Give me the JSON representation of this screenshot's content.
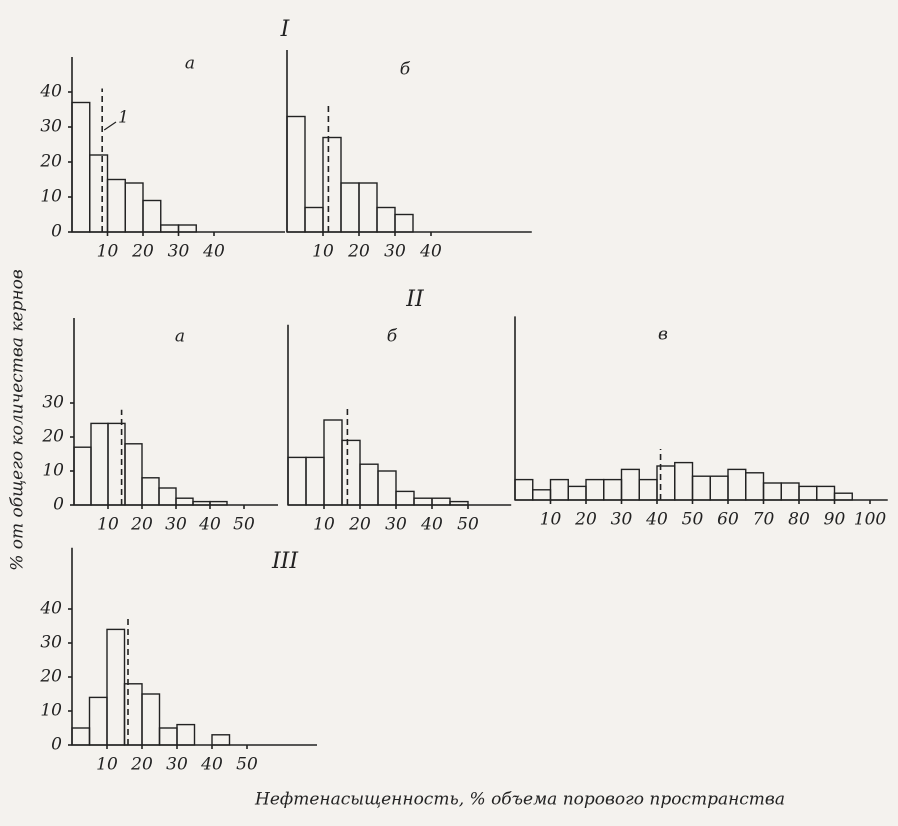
{
  "figure": {
    "ylabel": "% от общего количества кернов",
    "xlabel": "Нефтенасыщенность, % объема порового пространства"
  },
  "chart_data": [
    {
      "type": "histogram",
      "group": "I",
      "title": "а",
      "annotation": "1",
      "bins": [
        0,
        5,
        10,
        15,
        20,
        25,
        30,
        35
      ],
      "values": [
        37,
        22,
        15,
        14,
        9,
        2,
        2
      ],
      "mean": 8.5,
      "xlim": [
        0,
        60
      ],
      "ylim": [
        0,
        50
      ],
      "xticks": [
        10,
        20,
        30,
        40
      ],
      "yticks": [
        0,
        10,
        20,
        30,
        40
      ]
    },
    {
      "type": "histogram",
      "title": "б",
      "bins": [
        0,
        5,
        10,
        15,
        20,
        25,
        30,
        35
      ],
      "values": [
        33,
        7,
        27,
        14,
        14,
        7,
        5
      ],
      "mean": 11.5,
      "xlim": [
        0,
        68
      ],
      "ylim": [
        0,
        52
      ],
      "xticks": [
        10,
        20,
        30,
        40
      ]
    },
    {
      "type": "histogram",
      "group": "II",
      "title": "а",
      "bins": [
        0,
        5,
        10,
        15,
        20,
        25,
        30,
        35,
        40,
        45
      ],
      "values": [
        17,
        24,
        24,
        18,
        8,
        5,
        2,
        1,
        1
      ],
      "mean": 14,
      "xlim": [
        0,
        60
      ],
      "ylim": [
        0,
        55
      ],
      "xticks": [
        10,
        20,
        30,
        40,
        50
      ],
      "yticks": [
        0,
        10,
        20,
        30
      ]
    },
    {
      "type": "histogram",
      "title": "б",
      "bins": [
        0,
        5,
        10,
        15,
        20,
        25,
        30,
        35,
        40,
        45,
        50
      ],
      "values": [
        14,
        14,
        25,
        19,
        12,
        10,
        4,
        2,
        2,
        1
      ],
      "mean": 16.5,
      "xlim": [
        0,
        62
      ],
      "ylim": [
        0,
        53
      ],
      "xticks": [
        10,
        20,
        30,
        40,
        50
      ]
    },
    {
      "type": "histogram",
      "title": "в",
      "bins": [
        0,
        5,
        10,
        15,
        20,
        25,
        30,
        35,
        40,
        45,
        50,
        55,
        60,
        65,
        70,
        75,
        80,
        85,
        90,
        95
      ],
      "values": [
        6,
        3,
        6,
        4,
        6,
        6,
        9,
        6,
        10,
        11,
        7,
        7,
        9,
        8,
        5,
        5,
        4,
        4,
        2
      ],
      "mean": 41,
      "xlim": [
        0,
        105
      ],
      "ylim": [
        0,
        54
      ],
      "xticks": [
        10,
        20,
        30,
        40,
        50,
        60,
        70,
        80,
        90,
        100
      ]
    },
    {
      "type": "histogram",
      "group": "III",
      "bins": [
        0,
        5,
        10,
        15,
        20,
        25,
        30,
        35,
        40,
        45
      ],
      "values": [
        5,
        14,
        34,
        18,
        15,
        5,
        6,
        0,
        3
      ],
      "mean": 16,
      "xlim": [
        0,
        70
      ],
      "ylim": [
        0,
        58
      ],
      "xticks": [
        10,
        20,
        30,
        40,
        50
      ],
      "yticks": [
        0,
        10,
        20,
        30,
        40
      ]
    }
  ]
}
